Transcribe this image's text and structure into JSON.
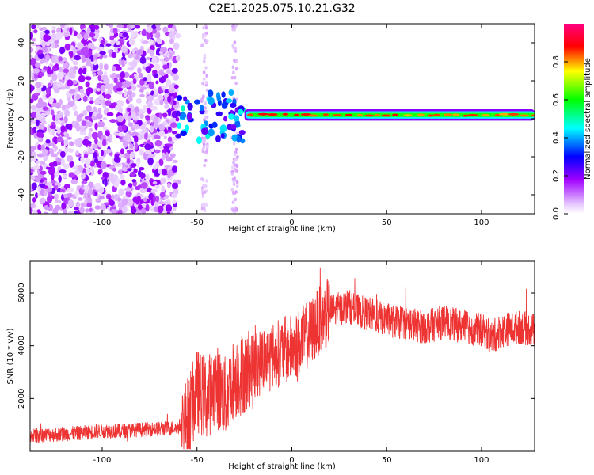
{
  "title": "C2E1.2025.075.10.21.G32",
  "chart_data": [
    {
      "type": "heatmap",
      "title": "C2E1.2025.075.10.21.G32",
      "xlabel": "Height of straight line (km)",
      "ylabel": "Frequency (Hz)",
      "xlim": [
        -138,
        128
      ],
      "ylim": [
        -50,
        50
      ],
      "xticks": [
        -100,
        -50,
        0,
        50,
        100
      ],
      "yticks": [
        -40,
        -20,
        0,
        20,
        40
      ],
      "colorbar": {
        "label": "Normalized spectral amplitude",
        "range": [
          0,
          1
        ],
        "ticks": [
          0.0,
          0.2,
          0.4,
          0.6,
          0.8
        ],
        "colors": [
          "#ffffff",
          "#a000ff",
          "#0000ff",
          "#00ffff",
          "#00ff00",
          "#ffff00",
          "#ff0000",
          "#ff0080"
        ]
      },
      "regions": [
        {
          "name": "scattered noise",
          "x_range": [
            -138,
            -60
          ],
          "freq_range": [
            -50,
            50
          ],
          "amplitude": 0.15
        },
        {
          "name": "scattered features",
          "x_range": [
            -60,
            -25
          ],
          "freq_range": [
            -12,
            14
          ],
          "amplitude": 0.45
        },
        {
          "name": "narrow band",
          "x_range": [
            -25,
            128
          ],
          "freq_center": 2,
          "freq_halfwidth": 3,
          "amplitude": 0.9
        }
      ]
    },
    {
      "type": "line",
      "xlabel": "Height of straight line (km)",
      "ylabel": "SNR (10 * v/v)",
      "xlim": [
        -138,
        128
      ],
      "ylim": [
        0,
        7200
      ],
      "xticks": [
        -100,
        -50,
        0,
        50,
        100
      ],
      "yticks": [
        2000,
        4000,
        6000
      ],
      "color": "#ee3333",
      "series": [
        {
          "x": [
            -138,
            -130,
            -120,
            -110,
            -100,
            -90,
            -80,
            -70,
            -60,
            -55,
            -50,
            -45,
            -40,
            -35,
            -30,
            -25,
            -20,
            -15,
            -10,
            -5,
            0,
            5,
            10,
            15,
            20,
            25,
            30,
            35,
            40,
            45,
            50,
            55,
            60,
            65,
            70,
            75,
            80,
            85,
            90,
            95,
            100,
            105,
            110,
            115,
            120,
            128
          ],
          "y": [
            600,
            620,
            650,
            700,
            780,
            760,
            820,
            850,
            900,
            1200,
            2300,
            2000,
            2500,
            2000,
            2800,
            3000,
            3200,
            3500,
            3600,
            3800,
            3900,
            4200,
            4500,
            5000,
            5300,
            5400,
            5500,
            5300,
            5200,
            5100,
            5000,
            4900,
            4900,
            4800,
            4700,
            4800,
            4900,
            4800,
            4750,
            4650,
            4600,
            4300,
            4550,
            4650,
            4700,
            4600
          ]
        }
      ]
    }
  ]
}
